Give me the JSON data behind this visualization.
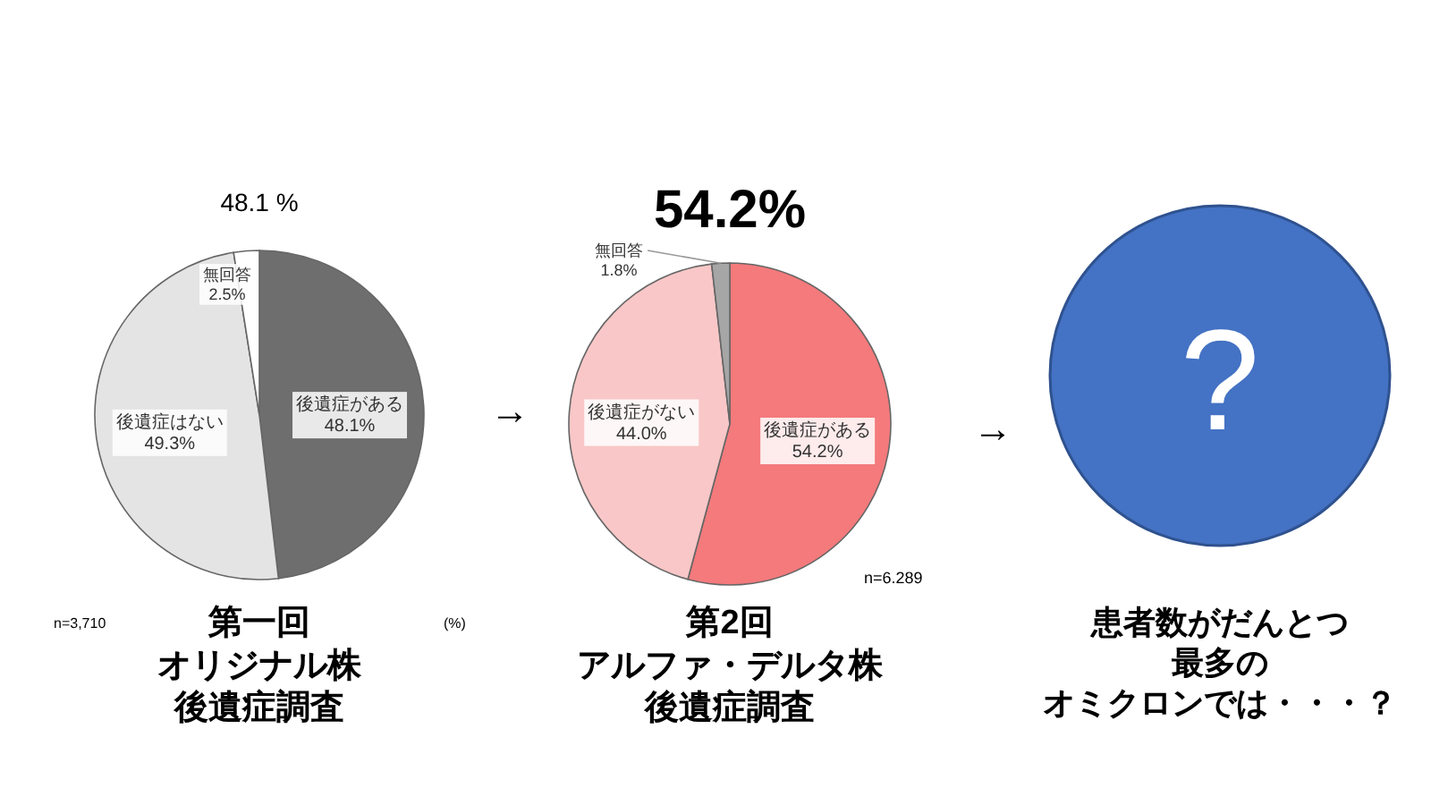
{
  "chart_data": [
    {
      "type": "pie",
      "title": "48.1 %",
      "categories": [
        "後遺症がある",
        "後遺症はない",
        "無回答"
      ],
      "values": [
        48.1,
        49.3,
        2.5
      ],
      "colors": [
        "#6e6e6e",
        "#e4e4e4",
        "#ffffff"
      ],
      "value_labels": [
        "48.1%",
        "49.3%",
        "2.5%"
      ],
      "annotations": [
        "n=3,710",
        "(%)",
        "第一回",
        "オリジナル株",
        "後遺症調査"
      ]
    },
    {
      "type": "pie",
      "title": "54.2%",
      "categories": [
        "後遺症がある",
        "後遺症がない",
        "無回答"
      ],
      "values": [
        54.2,
        44.0,
        1.8
      ],
      "colors": [
        "#f47a7c",
        "#f9c7c7",
        "#a6a6a6"
      ],
      "value_labels": [
        "54.2%",
        "44.0%",
        "1.8%"
      ],
      "annotations": [
        "→",
        "n=6.289",
        "第2回",
        "アルファ・デルタ株",
        "後遺症調査"
      ]
    },
    {
      "type": "other",
      "annotations": [
        "→",
        "?",
        "患者数がだんとつ",
        "最多の",
        "オミクロンでは・・・？"
      ]
    }
  ]
}
